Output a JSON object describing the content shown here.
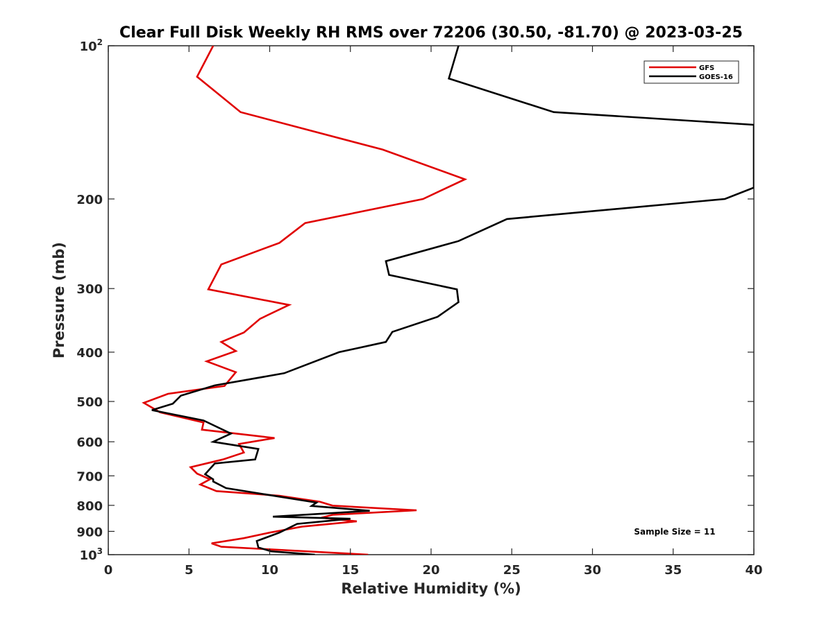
{
  "chart_data": {
    "type": "line",
    "title": "Clear Full Disk Weekly RH RMS over 72206 (30.50, -81.70) @ 2023-03-25",
    "xlabel": "Relative Humidity (%)",
    "ylabel": "Pressure (mb)",
    "xlim": [
      0,
      40
    ],
    "ylim": [
      100,
      1000
    ],
    "yscale": "log",
    "y_reversed": true,
    "grid": false,
    "legend_position": "top-right",
    "x_ticks": [
      "0",
      "5",
      "10",
      "15",
      "20",
      "25",
      "30",
      "35",
      "40"
    ],
    "y_ticks": [
      {
        "value": 200,
        "label": "200"
      },
      {
        "value": 300,
        "label": "300"
      },
      {
        "value": 400,
        "label": "400"
      },
      {
        "value": 500,
        "label": "500"
      },
      {
        "value": 600,
        "label": "600"
      },
      {
        "value": 700,
        "label": "700"
      },
      {
        "value": 800,
        "label": "800"
      },
      {
        "value": 900,
        "label": "900"
      }
    ],
    "y_ticks_pow": [
      {
        "value": 100,
        "base": "10",
        "exp": "2"
      },
      {
        "value": 1000,
        "base": "10",
        "exp": "3"
      }
    ],
    "annotation": "Sample Size = 11",
    "series": [
      {
        "name": "GFS",
        "color": "#e00000",
        "points": [
          [
            6.5,
            100
          ],
          [
            5.5,
            115
          ],
          [
            8.2,
            135
          ],
          [
            17.0,
            160
          ],
          [
            22.1,
            183
          ],
          [
            19.5,
            200
          ],
          [
            12.2,
            223
          ],
          [
            10.6,
            244
          ],
          [
            7.0,
            269
          ],
          [
            6.2,
            301
          ],
          [
            11.2,
            323
          ],
          [
            9.4,
            344
          ],
          [
            8.4,
            366
          ],
          [
            7.0,
            382
          ],
          [
            7.9,
            398
          ],
          [
            6.1,
            417
          ],
          [
            7.9,
            438
          ],
          [
            7.2,
            466
          ],
          [
            3.7,
            483
          ],
          [
            2.2,
            503
          ],
          [
            3.2,
            525
          ],
          [
            5.9,
            550
          ],
          [
            5.8,
            568
          ],
          [
            10.3,
            590
          ],
          [
            8.1,
            606
          ],
          [
            8.4,
            630
          ],
          [
            7.1,
            650
          ],
          [
            5.1,
            673
          ],
          [
            5.5,
            693
          ],
          [
            6.3,
            711
          ],
          [
            5.7,
            728
          ],
          [
            6.7,
            750
          ],
          [
            10.6,
            766
          ],
          [
            13.1,
            787
          ],
          [
            13.9,
            801
          ],
          [
            19.1,
            818
          ],
          [
            13.9,
            835
          ],
          [
            13.2,
            846
          ],
          [
            15.4,
            860
          ],
          [
            12.0,
            881
          ],
          [
            10.0,
            905
          ],
          [
            8.4,
            928
          ],
          [
            6.4,
            950
          ],
          [
            7.0,
            965
          ],
          [
            16.1,
            1000
          ]
        ]
      },
      {
        "name": "GOES-16",
        "color": "#000000",
        "points": [
          [
            21.7,
            100
          ],
          [
            21.1,
            116
          ],
          [
            27.6,
            135
          ],
          [
            40.0,
            143
          ],
          [
            40.0,
            190
          ],
          [
            38.2,
            200
          ],
          [
            24.7,
            219
          ],
          [
            21.7,
            242
          ],
          [
            17.2,
            265
          ],
          [
            17.4,
            282
          ],
          [
            21.6,
            301
          ],
          [
            21.7,
            319
          ],
          [
            20.4,
            341
          ],
          [
            17.6,
            365
          ],
          [
            17.2,
            382
          ],
          [
            14.3,
            400
          ],
          [
            10.9,
            440
          ],
          [
            6.6,
            465
          ],
          [
            4.5,
            487
          ],
          [
            4.0,
            505
          ],
          [
            2.7,
            520
          ],
          [
            5.9,
            545
          ],
          [
            7.6,
            578
          ],
          [
            6.5,
            600
          ],
          [
            9.3,
            620
          ],
          [
            9.1,
            650
          ],
          [
            6.6,
            662
          ],
          [
            6.0,
            695
          ],
          [
            6.5,
            711
          ],
          [
            6.5,
            718
          ],
          [
            7.3,
            740
          ],
          [
            12.9,
            790
          ],
          [
            12.6,
            802
          ],
          [
            16.2,
            820
          ],
          [
            10.2,
            842
          ],
          [
            15.0,
            850
          ],
          [
            11.7,
            870
          ],
          [
            10.6,
            905
          ],
          [
            9.2,
            940
          ],
          [
            9.3,
            968
          ],
          [
            10.1,
            985
          ],
          [
            12.8,
            1000
          ]
        ]
      }
    ]
  }
}
